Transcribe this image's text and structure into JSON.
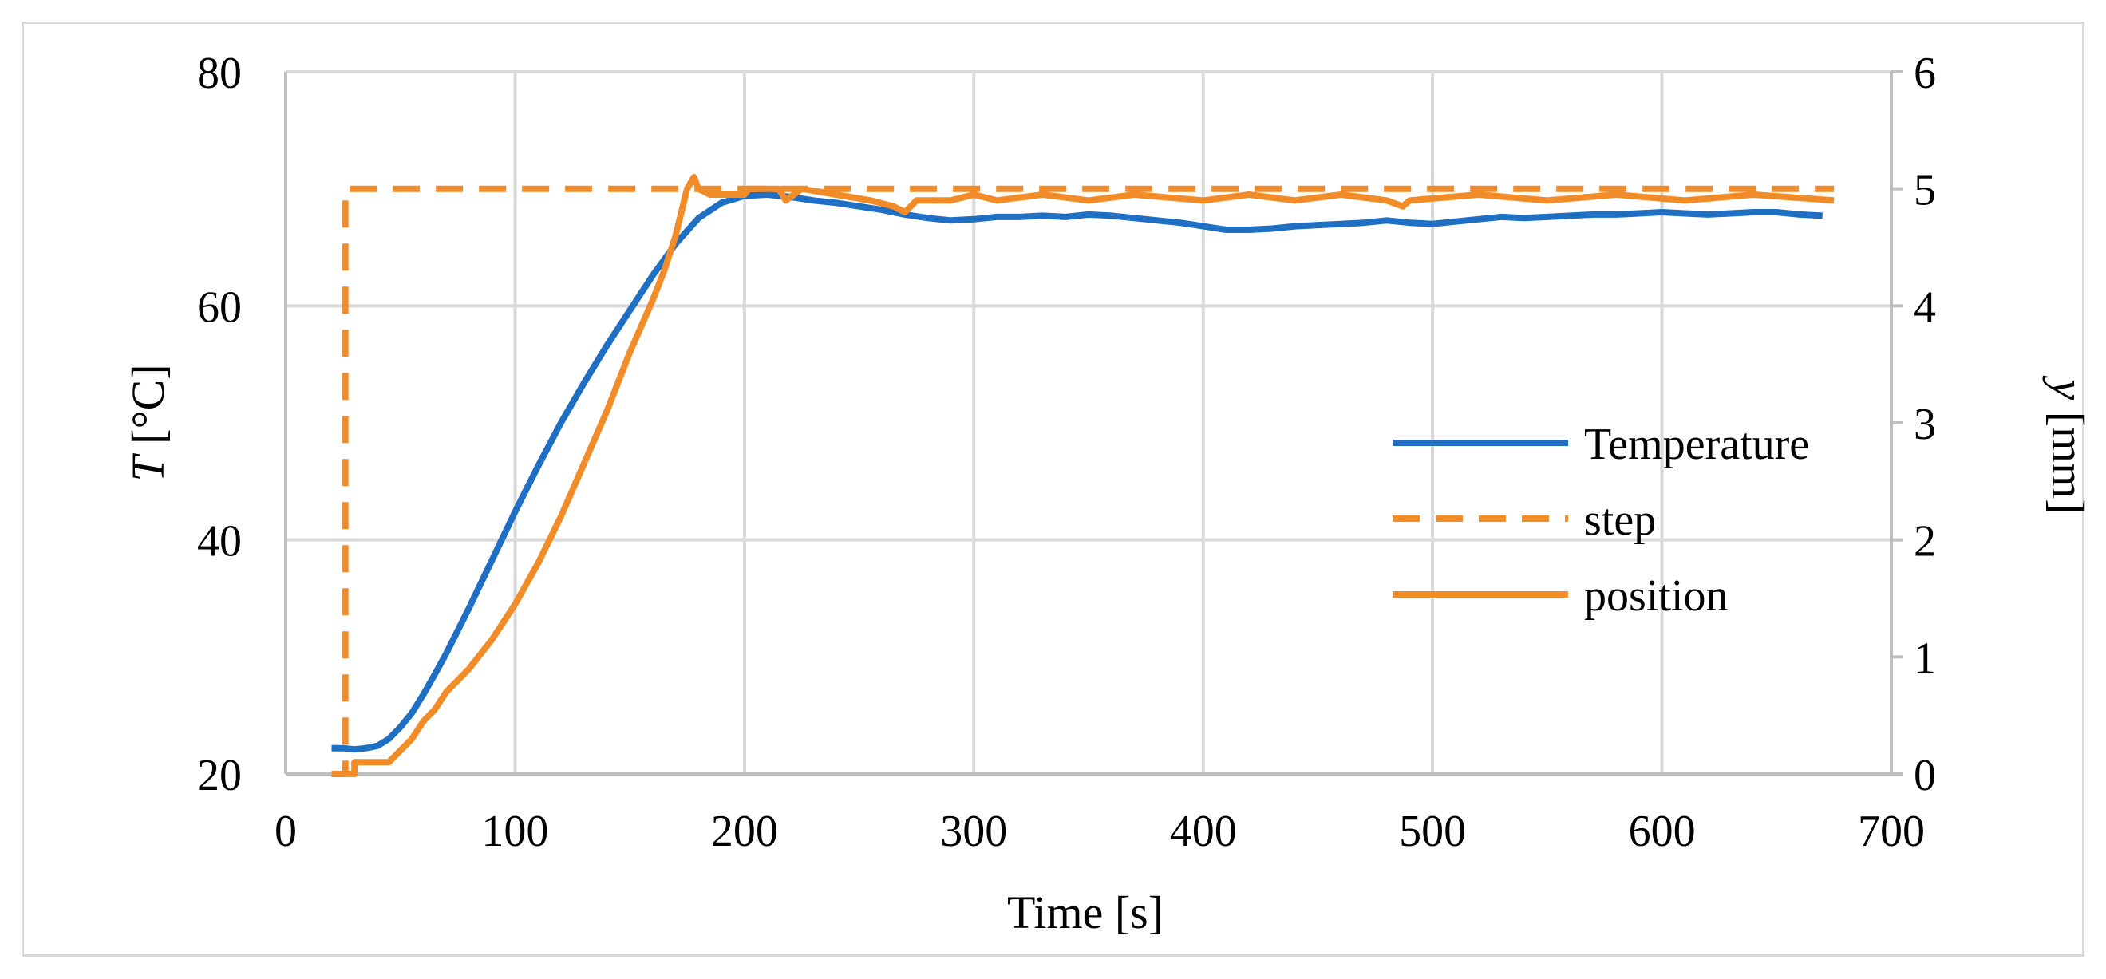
{
  "chart_data": {
    "type": "line",
    "xlabel": "Time [s]",
    "ylabel_left": {
      "symbol": "T",
      "unit": " [°C]"
    },
    "ylabel_right": {
      "symbol": "y",
      "unit": " [mm]"
    },
    "xlim": [
      0,
      700
    ],
    "ylim_left": [
      20,
      80
    ],
    "ylim_right": [
      0,
      6
    ],
    "x_ticks": [
      "0",
      "100",
      "200",
      "300",
      "400",
      "500",
      "600",
      "700"
    ],
    "y_left_ticks": [
      "20",
      "40",
      "60",
      "80"
    ],
    "y_right_ticks": [
      "0",
      "1",
      "2",
      "3",
      "4",
      "5",
      "6"
    ],
    "grid": true,
    "legend_position": "right-center",
    "series": [
      {
        "name": "Temperature",
        "axis": "left",
        "color": "#1f6fc5",
        "style": "solid",
        "points": [
          [
            20,
            22.2
          ],
          [
            25,
            22.2
          ],
          [
            30,
            22.1
          ],
          [
            35,
            22.2
          ],
          [
            40,
            22.4
          ],
          [
            45,
            23.0
          ],
          [
            50,
            24.0
          ],
          [
            55,
            25.2
          ],
          [
            60,
            26.8
          ],
          [
            65,
            28.5
          ],
          [
            70,
            30.3
          ],
          [
            80,
            34.2
          ],
          [
            90,
            38.3
          ],
          [
            100,
            42.4
          ],
          [
            110,
            46.3
          ],
          [
            120,
            50.0
          ],
          [
            130,
            53.4
          ],
          [
            140,
            56.6
          ],
          [
            150,
            59.6
          ],
          [
            160,
            62.6
          ],
          [
            170,
            65.3
          ],
          [
            180,
            67.5
          ],
          [
            190,
            68.8
          ],
          [
            200,
            69.4
          ],
          [
            210,
            69.5
          ],
          [
            220,
            69.3
          ],
          [
            230,
            69.0
          ],
          [
            240,
            68.8
          ],
          [
            250,
            68.5
          ],
          [
            260,
            68.2
          ],
          [
            270,
            67.8
          ],
          [
            280,
            67.5
          ],
          [
            290,
            67.3
          ],
          [
            300,
            67.4
          ],
          [
            310,
            67.6
          ],
          [
            320,
            67.6
          ],
          [
            330,
            67.7
          ],
          [
            340,
            67.6
          ],
          [
            350,
            67.8
          ],
          [
            360,
            67.7
          ],
          [
            370,
            67.5
          ],
          [
            380,
            67.3
          ],
          [
            390,
            67.1
          ],
          [
            400,
            66.8
          ],
          [
            410,
            66.5
          ],
          [
            420,
            66.5
          ],
          [
            430,
            66.6
          ],
          [
            440,
            66.8
          ],
          [
            450,
            66.9
          ],
          [
            460,
            67.0
          ],
          [
            470,
            67.1
          ],
          [
            480,
            67.3
          ],
          [
            490,
            67.1
          ],
          [
            500,
            67.0
          ],
          [
            510,
            67.2
          ],
          [
            520,
            67.4
          ],
          [
            530,
            67.6
          ],
          [
            540,
            67.5
          ],
          [
            550,
            67.6
          ],
          [
            560,
            67.7
          ],
          [
            570,
            67.8
          ],
          [
            580,
            67.8
          ],
          [
            590,
            67.9
          ],
          [
            600,
            68.0
          ],
          [
            610,
            67.9
          ],
          [
            620,
            67.8
          ],
          [
            630,
            67.9
          ],
          [
            640,
            68.0
          ],
          [
            650,
            68.0
          ],
          [
            660,
            67.8
          ],
          [
            670,
            67.7
          ]
        ]
      },
      {
        "name": "step",
        "axis": "right",
        "color": "#f28c28",
        "style": "dashed",
        "points": [
          [
            20,
            0
          ],
          [
            26,
            0
          ],
          [
            26,
            5
          ],
          [
            675,
            5
          ]
        ]
      },
      {
        "name": "position",
        "axis": "right",
        "color": "#f28c28",
        "style": "solid",
        "points": [
          [
            20,
            0
          ],
          [
            30,
            0
          ],
          [
            30,
            0.1
          ],
          [
            45,
            0.1
          ],
          [
            50,
            0.2
          ],
          [
            55,
            0.3
          ],
          [
            60,
            0.45
          ],
          [
            65,
            0.55
          ],
          [
            70,
            0.7
          ],
          [
            80,
            0.9
          ],
          [
            90,
            1.15
          ],
          [
            100,
            1.45
          ],
          [
            110,
            1.8
          ],
          [
            120,
            2.2
          ],
          [
            130,
            2.65
          ],
          [
            140,
            3.1
          ],
          [
            150,
            3.6
          ],
          [
            160,
            4.05
          ],
          [
            165,
            4.3
          ],
          [
            170,
            4.6
          ],
          [
            175,
            5.0
          ],
          [
            178,
            5.1
          ],
          [
            180,
            5.0
          ],
          [
            185,
            4.95
          ],
          [
            200,
            4.95
          ],
          [
            202,
            5.0
          ],
          [
            215,
            5.0
          ],
          [
            218,
            4.9
          ],
          [
            225,
            5.0
          ],
          [
            240,
            4.95
          ],
          [
            255,
            4.9
          ],
          [
            265,
            4.85
          ],
          [
            270,
            4.8
          ],
          [
            275,
            4.9
          ],
          [
            290,
            4.9
          ],
          [
            300,
            4.95
          ],
          [
            310,
            4.9
          ],
          [
            330,
            4.95
          ],
          [
            350,
            4.9
          ],
          [
            370,
            4.95
          ],
          [
            400,
            4.9
          ],
          [
            420,
            4.95
          ],
          [
            440,
            4.9
          ],
          [
            460,
            4.95
          ],
          [
            480,
            4.9
          ],
          [
            487,
            4.85
          ],
          [
            490,
            4.9
          ],
          [
            520,
            4.95
          ],
          [
            550,
            4.9
          ],
          [
            580,
            4.95
          ],
          [
            610,
            4.9
          ],
          [
            640,
            4.95
          ],
          [
            675,
            4.9
          ]
        ]
      }
    ]
  }
}
